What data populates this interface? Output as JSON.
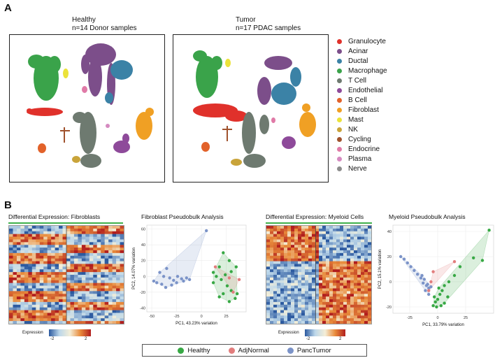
{
  "panel_a": {
    "label": "A",
    "left_title": [
      "Healthy",
      "n=14 Donor samples"
    ],
    "right_title": [
      "Tumor",
      "n=17 PDAC samples"
    ],
    "legend": [
      {
        "name": "Granulocyte",
        "color": "#e0312b"
      },
      {
        "name": "Acinar",
        "color": "#7c4e8a"
      },
      {
        "name": "Ductal",
        "color": "#3b82a6"
      },
      {
        "name": "Macrophage",
        "color": "#3aa34a"
      },
      {
        "name": "T Cell",
        "color": "#6e7a70"
      },
      {
        "name": "Endothelial",
        "color": "#8e4a9a"
      },
      {
        "name": "B Cell",
        "color": "#e2622a"
      },
      {
        "name": "Fibroblast",
        "color": "#f0a024"
      },
      {
        "name": "Mast",
        "color": "#ebe23a"
      },
      {
        "name": "NK",
        "color": "#c9a43a"
      },
      {
        "name": "Cycling",
        "color": "#a0522d"
      },
      {
        "name": "Endocrine",
        "color": "#e07aa7"
      },
      {
        "name": "Plasma",
        "color": "#d58ac0"
      },
      {
        "name": "Nerve",
        "color": "#8c8c8c"
      }
    ]
  },
  "panel_b": {
    "label": "B",
    "heatmap_fibro_title": "Differential Expression: Fibroblasts",
    "heatmap_myeloid_title": "Differential Expression: Myeloid Cells",
    "colorbar": {
      "title": "Expression",
      "min": "-2",
      "max": "2"
    },
    "group_legend": [
      {
        "name": "Healthy",
        "color": "#37a844"
      },
      {
        "name": "AdjNormal",
        "color": "#e27d7d"
      },
      {
        "name": "PancTumor",
        "color": "#7b93c8"
      }
    ]
  },
  "chart_data": [
    {
      "type": "scatter",
      "title": "Fibroblast Pseudobulk Analysis",
      "xlabel": "PC1, 43.23% variation",
      "ylabel": "PC2, 14.07% variation",
      "xlim": [
        -55,
        45
      ],
      "ylim": [
        -45,
        65
      ],
      "xticks": [
        -50,
        -25,
        0,
        25
      ],
      "yticks": [
        -40,
        -20,
        0,
        20,
        40,
        60
      ],
      "series": [
        {
          "name": "PancTumor",
          "points": [
            [
              5,
              58
            ],
            [
              -35,
              10
            ],
            [
              -42,
              5
            ],
            [
              -38,
              0
            ],
            [
              -32,
              -2
            ],
            [
              -28,
              -5
            ],
            [
              -24,
              0
            ],
            [
              -20,
              -3
            ],
            [
              -18,
              -6
            ],
            [
              -45,
              -8
            ],
            [
              -40,
              -10
            ],
            [
              -36,
              -14
            ],
            [
              -30,
              -11
            ],
            [
              -25,
              -8
            ],
            [
              -15,
              -2
            ],
            [
              -12,
              -4
            ],
            [
              -48,
              -6
            ]
          ]
        },
        {
          "name": "Healthy",
          "points": [
            [
              22,
              30
            ],
            [
              28,
              20
            ],
            [
              18,
              12
            ],
            [
              30,
              6
            ],
            [
              35,
              12
            ],
            [
              24,
              2
            ],
            [
              15,
              0
            ],
            [
              20,
              -4
            ],
            [
              12,
              -8
            ],
            [
              26,
              -12
            ],
            [
              30,
              -18
            ],
            [
              22,
              -22
            ],
            [
              34,
              -28
            ],
            [
              28,
              -32
            ],
            [
              18,
              -26
            ],
            [
              36,
              -22
            ],
            [
              12,
              5
            ]
          ]
        },
        {
          "name": "AdjNormal",
          "points": [
            [
              14,
              12
            ],
            [
              28,
              -2
            ],
            [
              38,
              -4
            ],
            [
              32,
              -20
            ]
          ]
        }
      ]
    },
    {
      "type": "scatter",
      "title": "Myeloid Pseudobulk Analysis",
      "xlabel": "PC1, 33.79% variation",
      "ylabel": "PC2, 15.1% variation",
      "xlim": [
        -40,
        50
      ],
      "ylim": [
        -25,
        45
      ],
      "xticks": [
        -25,
        0,
        25
      ],
      "yticks": [
        -20,
        0,
        20,
        40
      ],
      "series": [
        {
          "name": "PancTumor",
          "points": [
            [
              -33,
              20
            ],
            [
              -30,
              18
            ],
            [
              -27,
              15
            ],
            [
              -24,
              12
            ],
            [
              -21,
              9
            ],
            [
              -18,
              6
            ],
            [
              -15,
              3
            ],
            [
              -12,
              2
            ],
            [
              -13,
              -1
            ],
            [
              -10,
              -3
            ],
            [
              -8,
              -5
            ],
            [
              -11,
              -7
            ],
            [
              -8,
              -10
            ],
            [
              -6,
              -4
            ],
            [
              -9,
              -2
            ],
            [
              -14,
              5
            ]
          ]
        },
        {
          "name": "Healthy",
          "points": [
            [
              46,
              41
            ],
            [
              40,
              17
            ],
            [
              32,
              19
            ],
            [
              20,
              12
            ],
            [
              15,
              5
            ],
            [
              10,
              0
            ],
            [
              6,
              -3
            ],
            [
              4,
              -7
            ],
            [
              2,
              -10
            ],
            [
              0,
              -14
            ],
            [
              -2,
              -16
            ],
            [
              -4,
              -19
            ],
            [
              -1,
              -20
            ],
            [
              3,
              -19
            ],
            [
              6,
              -17
            ],
            [
              9,
              -12
            ],
            [
              1,
              -5
            ],
            [
              -3,
              -12
            ]
          ]
        },
        {
          "name": "AdjNormal",
          "points": [
            [
              -4,
              8
            ],
            [
              15,
              16
            ],
            [
              -6,
              0
            ],
            [
              -8,
              -7
            ]
          ]
        }
      ]
    }
  ]
}
